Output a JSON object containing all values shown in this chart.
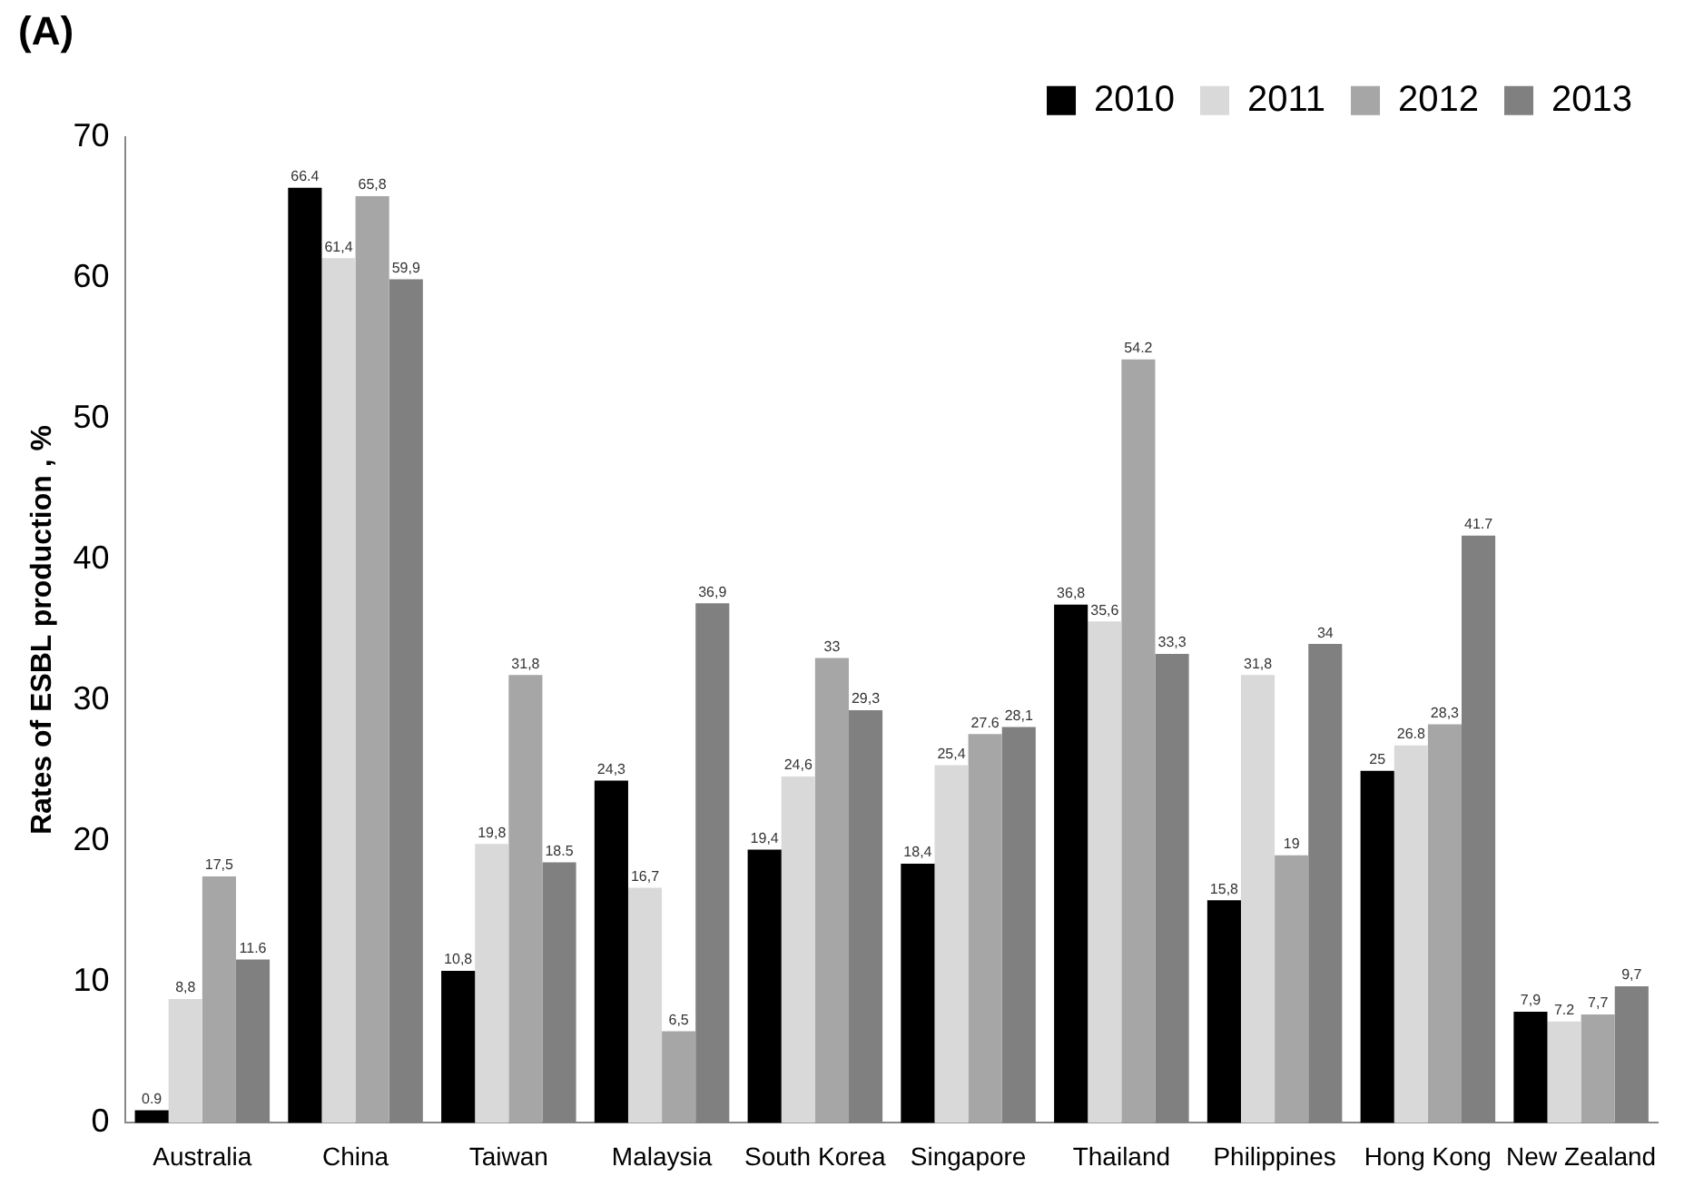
{
  "chart_data": {
    "type": "bar",
    "title": "(A)",
    "ylabel": "Rates of ESBL production , %",
    "categories": [
      "Australia",
      "China",
      "Taiwan",
      "Malaysia",
      "South Korea",
      "Singapore",
      "Thailand",
      "Philippines",
      "Hong Kong",
      "New Zealand"
    ],
    "series": [
      {
        "name": "2010",
        "color": "#000000",
        "values": [
          0.9,
          66.4,
          10.8,
          24.3,
          19.4,
          18.4,
          36.8,
          15.8,
          25,
          7.9
        ],
        "value_labels": [
          "0.9",
          "66.4",
          "10,8",
          "24,3",
          "19,4",
          "18,4",
          "36,8",
          "15,8",
          "25",
          "7,9"
        ]
      },
      {
        "name": "2011",
        "color": "#d9d9d9",
        "values": [
          8.8,
          61.4,
          19.8,
          16.7,
          24.6,
          25.4,
          35.6,
          31.8,
          26.8,
          7.2
        ],
        "value_labels": [
          "8,8",
          "61,4",
          "19,8",
          "16,7",
          "24,6",
          "25,4",
          "35,6",
          "31,8",
          "26.8",
          "7.2"
        ]
      },
      {
        "name": "2012",
        "color": "#a6a6a6",
        "values": [
          17.5,
          65.8,
          31.8,
          6.5,
          33,
          27.6,
          54.2,
          19,
          28.3,
          7.7
        ],
        "value_labels": [
          "17,5",
          "65,8",
          "31,8",
          "6,5",
          "33",
          "27.6",
          "54.2",
          "19",
          "28,3",
          "7,7"
        ]
      },
      {
        "name": "2013",
        "color": "#808080",
        "values": [
          11.6,
          59.9,
          18.5,
          36.9,
          29.3,
          28.1,
          33.3,
          34,
          41.7,
          9.7
        ],
        "value_labels": [
          "11.6",
          "59,9",
          "18.5",
          "36,9",
          "29,3",
          "28,1",
          "33,3",
          "34",
          "41.7",
          "9,7"
        ]
      }
    ],
    "ylim": [
      0,
      70
    ],
    "yticks": [
      0,
      10,
      20,
      30,
      40,
      50,
      60,
      70
    ],
    "grid": false,
    "legend": "top right"
  }
}
